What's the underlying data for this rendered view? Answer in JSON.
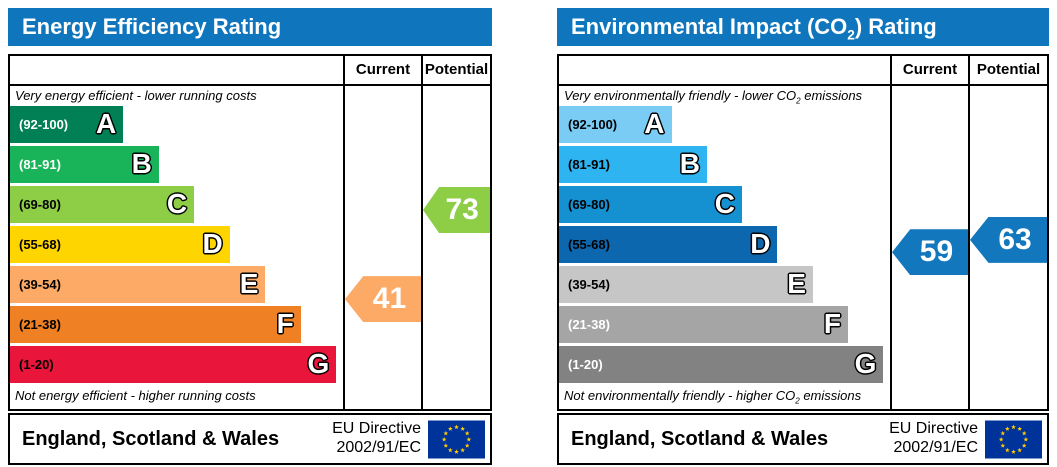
{
  "colors": {
    "header_blue": "#0f76bd",
    "eu_flag_blue": "#003399",
    "eu_star_yellow": "#ffcc00"
  },
  "panels": [
    {
      "title_pre": "Energy Efficiency Rating",
      "title_sub": "",
      "title_post": "",
      "col_current": "Current",
      "col_potential": "Potential",
      "top_note_pre": "Very energy efficient - lower running costs",
      "top_note_sub": "",
      "top_note_post": "",
      "bottom_note_pre": "Not energy efficient - higher running costs",
      "bottom_note_sub": "",
      "bottom_note_post": "",
      "bands": [
        {
          "letter": "A",
          "label": "(92-100)",
          "min": 92,
          "max": 100,
          "color": "#008054",
          "text": "#ffffff",
          "width_pct": 34
        },
        {
          "letter": "B",
          "label": "(81-91)",
          "min": 81,
          "max": 91,
          "color": "#19b459",
          "text": "#ffffff",
          "width_pct": 44.7
        },
        {
          "letter": "C",
          "label": "(69-80)",
          "min": 69,
          "max": 80,
          "color": "#8dce46",
          "text": "#000000",
          "width_pct": 55.3
        },
        {
          "letter": "D",
          "label": "(55-68)",
          "min": 55,
          "max": 68,
          "color": "#ffd500",
          "text": "#000000",
          "width_pct": 66
        },
        {
          "letter": "E",
          "label": "(39-54)",
          "min": 39,
          "max": 54,
          "color": "#fcaa65",
          "text": "#000000",
          "width_pct": 76.7
        },
        {
          "letter": "F",
          "label": "(21-38)",
          "min": 21,
          "max": 38,
          "color": "#ef8023",
          "text": "#000000",
          "width_pct": 87.3
        },
        {
          "letter": "G",
          "label": "(1-20)",
          "min": 1,
          "max": 20,
          "color": "#e9153b",
          "text": "#000000",
          "width_pct": 98
        }
      ],
      "current": {
        "value": "41",
        "color": "#fcaa65"
      },
      "potential": {
        "value": "73",
        "color": "#8dce46"
      },
      "footer_region": "England, Scotland & Wales",
      "footer_directive_1": "EU Directive",
      "footer_directive_2": "2002/91/EC"
    },
    {
      "title_pre": "Environmental Impact (CO",
      "title_sub": "2",
      "title_post": ") Rating",
      "col_current": "Current",
      "col_potential": "Potential",
      "top_note_pre": "Very environmentally friendly - lower CO",
      "top_note_sub": "2",
      "top_note_post": " emissions",
      "bottom_note_pre": "Not environmentally friendly - higher CO",
      "bottom_note_sub": "2",
      "bottom_note_post": " emissions",
      "bands": [
        {
          "letter": "A",
          "label": "(92-100)",
          "min": 92,
          "max": 100,
          "color": "#7accf4",
          "text": "#000000",
          "width_pct": 34
        },
        {
          "letter": "B",
          "label": "(81-91)",
          "min": 81,
          "max": 91,
          "color": "#2eb4f0",
          "text": "#000000",
          "width_pct": 44.7
        },
        {
          "letter": "C",
          "label": "(69-80)",
          "min": 69,
          "max": 80,
          "color": "#1590d0",
          "text": "#000000",
          "width_pct": 55.3
        },
        {
          "letter": "D",
          "label": "(55-68)",
          "min": 55,
          "max": 68,
          "color": "#0c67ae",
          "text": "#000000",
          "width_pct": 66
        },
        {
          "letter": "E",
          "label": "(39-54)",
          "min": 39,
          "max": 54,
          "color": "#c6c6c6",
          "text": "#000000",
          "width_pct": 76.7
        },
        {
          "letter": "F",
          "label": "(21-38)",
          "min": 21,
          "max": 38,
          "color": "#a5a5a5",
          "text": "#ffffff",
          "width_pct": 87.3
        },
        {
          "letter": "G",
          "label": "(1-20)",
          "min": 1,
          "max": 20,
          "color": "#828282",
          "text": "#ffffff",
          "width_pct": 98
        }
      ],
      "current": {
        "value": "59",
        "color": "#1277bd"
      },
      "potential": {
        "value": "63",
        "color": "#1277bd"
      },
      "footer_region": "England, Scotland & Wales",
      "footer_directive_1": "EU Directive",
      "footer_directive_2": "2002/91/EC"
    }
  ],
  "chart_data": [
    {
      "type": "bar",
      "title": "Energy Efficiency Rating",
      "orientation": "horizontal",
      "categories": [
        "A",
        "B",
        "C",
        "D",
        "E",
        "F",
        "G"
      ],
      "category_ranges": [
        "92-100",
        "81-91",
        "69-80",
        "55-68",
        "39-54",
        "21-38",
        "1-20"
      ],
      "values": [
        34,
        44.7,
        55.3,
        66,
        76.7,
        87.3,
        98
      ],
      "values_note": "fixed EPC template bar widths as % of scale column",
      "band_colors": [
        "#008054",
        "#19b459",
        "#8dce46",
        "#ffd500",
        "#fcaa65",
        "#ef8023",
        "#e9153b"
      ],
      "markers": [
        {
          "name": "Current",
          "value": 41,
          "band": "E",
          "color": "#fcaa65"
        },
        {
          "name": "Potential",
          "value": 73,
          "band": "C",
          "color": "#8dce46"
        }
      ],
      "axis_range": [
        1,
        100
      ],
      "grid": false,
      "legend": [
        "Current",
        "Potential"
      ],
      "legend_position": "top-right column headers",
      "annotations": [
        "Very energy efficient - lower running costs",
        "Not energy efficient - higher running costs",
        "England, Scotland & Wales",
        "EU Directive 2002/91/EC"
      ]
    },
    {
      "type": "bar",
      "title": "Environmental Impact (CO2) Rating",
      "orientation": "horizontal",
      "categories": [
        "A",
        "B",
        "C",
        "D",
        "E",
        "F",
        "G"
      ],
      "category_ranges": [
        "92-100",
        "81-91",
        "69-80",
        "55-68",
        "39-54",
        "21-38",
        "1-20"
      ],
      "values": [
        34,
        44.7,
        55.3,
        66,
        76.7,
        87.3,
        98
      ],
      "values_note": "fixed EPC template bar widths as % of scale column",
      "band_colors": [
        "#7accf4",
        "#2eb4f0",
        "#1590d0",
        "#0c67ae",
        "#c6c6c6",
        "#a5a5a5",
        "#828282"
      ],
      "markers": [
        {
          "name": "Current",
          "value": 59,
          "band": "D",
          "color": "#1277bd"
        },
        {
          "name": "Potential",
          "value": 63,
          "band": "D",
          "color": "#1277bd"
        }
      ],
      "axis_range": [
        1,
        100
      ],
      "grid": false,
      "legend": [
        "Current",
        "Potential"
      ],
      "legend_position": "top-right column headers",
      "annotations": [
        "Very environmentally friendly - lower CO2 emissions",
        "Not environmentally friendly - higher CO2 emissions",
        "England, Scotland & Wales",
        "EU Directive 2002/91/EC"
      ]
    }
  ]
}
